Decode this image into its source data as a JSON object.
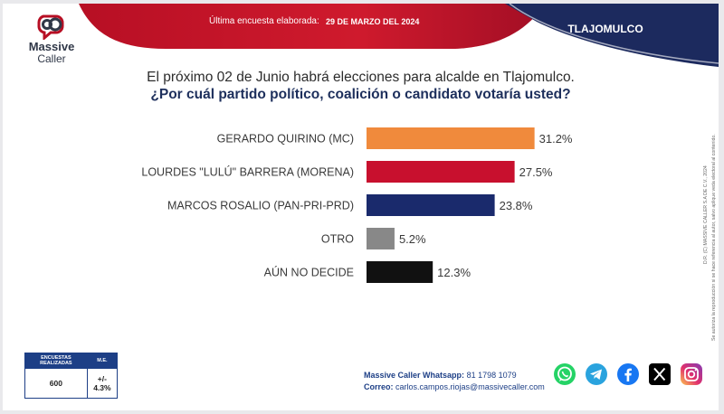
{
  "brand": {
    "logo_line1": "Massive",
    "logo_line2": "Caller"
  },
  "banner": {
    "label": "Última encuesta elaborada:",
    "date": "29 DE MARZO DEL 2024",
    "region": "TLAJOMULCO"
  },
  "question": {
    "line1": "El próximo 02 de Junio habrá elecciones para alcalde en Tlajomulco.",
    "line2": "¿Por cuál partido político, coalición o candidato votaría usted?"
  },
  "chart_data": {
    "type": "bar",
    "orientation": "horizontal",
    "categories": [
      "GERARDO QUIRINO (MC)",
      "LOURDES \"LULÚ\" BARRERA (MORENA)",
      "MARCOS ROSALIO (PAN-PRI-PRD)",
      "OTRO",
      "AÚN NO DECIDE"
    ],
    "values": [
      31.2,
      27.5,
      23.8,
      5.2,
      12.3
    ],
    "value_labels": [
      "31.2%",
      "27.5%",
      "23.8%",
      "5.2%",
      "12.3%"
    ],
    "colors": [
      "#f08a3c",
      "#c8102e",
      "#1a2a6c",
      "#888888",
      "#111111"
    ],
    "grid": false,
    "legend": "none"
  },
  "side_note": {
    "line1": "D.R. (C) MASSIVE CALLER S.A DE C.V., 2024",
    "line2": "Se autoriza la reproducción si se hace referencia al autor, salvo aplique veda electoral al contenido."
  },
  "stats": {
    "col1_header": "ENCUESTAS REALIZADAS",
    "col2_header": "M.E.",
    "col1_value": "600",
    "col2_value": "+/- 4.3%"
  },
  "contact": {
    "whatsapp_label": "Massive Caller Whatsapp:",
    "whatsapp_number": "81 1798 1079",
    "email_label": "Correo:",
    "email": "carlos.campos.riojas@massivecaller.com"
  },
  "social_icons": [
    "whatsapp-icon",
    "telegram-icon",
    "facebook-icon",
    "x-icon",
    "instagram-icon"
  ]
}
